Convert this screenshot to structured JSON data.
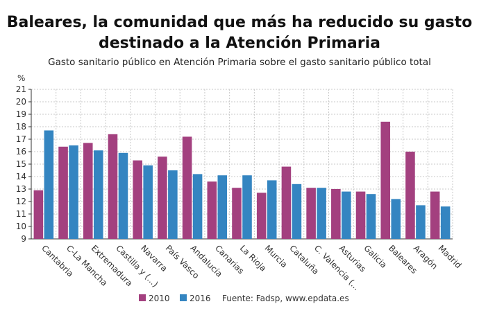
{
  "title_line1": "Baleares, la comunidad que más ha reducido su gasto",
  "title_line2": "destinado a la Atención Primaria",
  "subtitle": "Gasto sanitario público en Atención Primaria sobre el gasto sanitario público total",
  "source": "Fuente: Fadsp, www.epdata.es",
  "chart_data": {
    "type": "bar",
    "ylabel": "%",
    "ylim": [
      9,
      21
    ],
    "yticks": [
      9,
      10,
      11,
      12,
      13,
      14,
      15,
      16,
      17,
      18,
      19,
      20,
      21
    ],
    "grid": true,
    "legend_placement": "bottom",
    "categories": [
      "Cantabria",
      "C-La Mancha",
      "Extremadura",
      "Castilla y (...)",
      "Navarra",
      "País Vasco",
      "Andalucía",
      "Canarias",
      "La Rioja",
      "Murcia",
      "Cataluña",
      "C. Valencia (... ",
      "Asturias",
      "Galicia",
      "Baleares",
      "Aragón",
      "Madrid"
    ],
    "series": [
      {
        "name": "2010",
        "color": "#a3407f",
        "values": [
          12.9,
          16.4,
          16.7,
          17.4,
          15.3,
          15.6,
          17.2,
          13.6,
          13.1,
          12.7,
          14.8,
          13.1,
          13.0,
          12.8,
          18.4,
          16.0,
          12.8
        ]
      },
      {
        "name": "2016",
        "color": "#3485c1",
        "values": [
          17.7,
          16.5,
          16.1,
          15.9,
          14.9,
          14.5,
          14.2,
          14.1,
          14.1,
          13.7,
          13.4,
          13.1,
          12.8,
          12.6,
          12.2,
          11.7,
          11.6
        ]
      }
    ]
  }
}
